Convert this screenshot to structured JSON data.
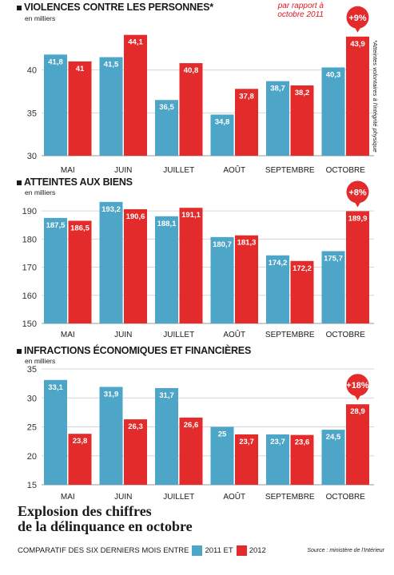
{
  "colors": {
    "y2011": "#4da6c7",
    "y2012": "#e42b2b",
    "badge": "#e42b2b",
    "grid": "#d6d6d6"
  },
  "header_note": {
    "line1": "par rapport à",
    "line2": "octobre 2011"
  },
  "side_note": "*Atteintes volontaires à l'intégrité physique",
  "headline": {
    "line1": "Explosion des chiffres",
    "line2": "de la délinquance en octobre"
  },
  "footer": {
    "text": "COMPARATIF DES SIX DERNIERS MOIS ENTRE",
    "legend_2011": "2011 ET",
    "legend_2012": "2012"
  },
  "source": "Source : ministère de l'Intérieur",
  "chart_data": [
    {
      "type": "bar",
      "title": "VIOLENCES CONTRE LES PERSONNES*",
      "unit": "en milliers",
      "categories": [
        "MAI",
        "JUIN",
        "JUILLET",
        "AOÛT",
        "SEPTEMBRE",
        "OCTOBRE"
      ],
      "series": [
        {
          "name": "2011",
          "values": [
            41.8,
            41.5,
            36.5,
            34.8,
            38.7,
            40.3
          ],
          "labels": [
            "41,8",
            "41,5",
            "36,5",
            "34,8",
            "38,7",
            "40,3"
          ]
        },
        {
          "name": "2012",
          "values": [
            41,
            44.1,
            40.8,
            37.8,
            38.2,
            43.9
          ],
          "labels": [
            "41",
            "44,1",
            "40,8",
            "37,8",
            "38,2",
            "43,9"
          ]
        }
      ],
      "ylim": [
        30,
        45
      ],
      "yticks": [
        30,
        35,
        40
      ],
      "ytick_labels": [
        "30",
        "35",
        "40"
      ],
      "badge": "+9%"
    },
    {
      "type": "bar",
      "title": "ATTEINTES AUX BIENS",
      "unit": "en milliers",
      "categories": [
        "MAI",
        "JUIN",
        "JUILLET",
        "AOÛT",
        "SEPTEMBRE",
        "OCTOBRE"
      ],
      "series": [
        {
          "name": "2011",
          "values": [
            187.5,
            193.2,
            188.1,
            180.7,
            174.2,
            175.7
          ],
          "labels": [
            "187,5",
            "193,2",
            "188,1",
            "180,7",
            "174,2",
            "175,7"
          ]
        },
        {
          "name": "2012",
          "values": [
            186.5,
            190.6,
            191.1,
            181.3,
            172.2,
            189.9
          ],
          "labels": [
            "186,5",
            "190,6",
            "191,1",
            "181,3",
            "172,2",
            "189,9"
          ]
        }
      ],
      "ylim": [
        150,
        194
      ],
      "yticks": [
        150,
        160,
        170,
        180,
        190
      ],
      "ytick_labels": [
        "150",
        "160",
        "170",
        "180",
        "190"
      ],
      "badge": "+8%"
    },
    {
      "type": "bar",
      "title": "INFRACTIONS ÉCONOMIQUES ET FINANCIÈRES",
      "unit": "en milliers",
      "categories": [
        "MAI",
        "JUIN",
        "JUILLET",
        "AOÛT",
        "SEPTEMBRE",
        "OCTOBRE"
      ],
      "series": [
        {
          "name": "2011",
          "values": [
            33.1,
            31.9,
            31.7,
            25,
            23.7,
            24.5
          ],
          "labels": [
            "33,1",
            "31,9",
            "31,7",
            "25",
            "23,7",
            "24,5"
          ]
        },
        {
          "name": "2012",
          "values": [
            23.8,
            26.3,
            26.6,
            23.7,
            23.6,
            28.9
          ],
          "labels": [
            "23,8",
            "26,3",
            "26,6",
            "23,7",
            "23,6",
            "28,9"
          ]
        }
      ],
      "ylim": [
        15,
        35
      ],
      "yticks": [
        15,
        20,
        25,
        30,
        35
      ],
      "ytick_labels": [
        "15",
        "20",
        "25",
        "30",
        "35"
      ],
      "badge": "+18%"
    }
  ]
}
